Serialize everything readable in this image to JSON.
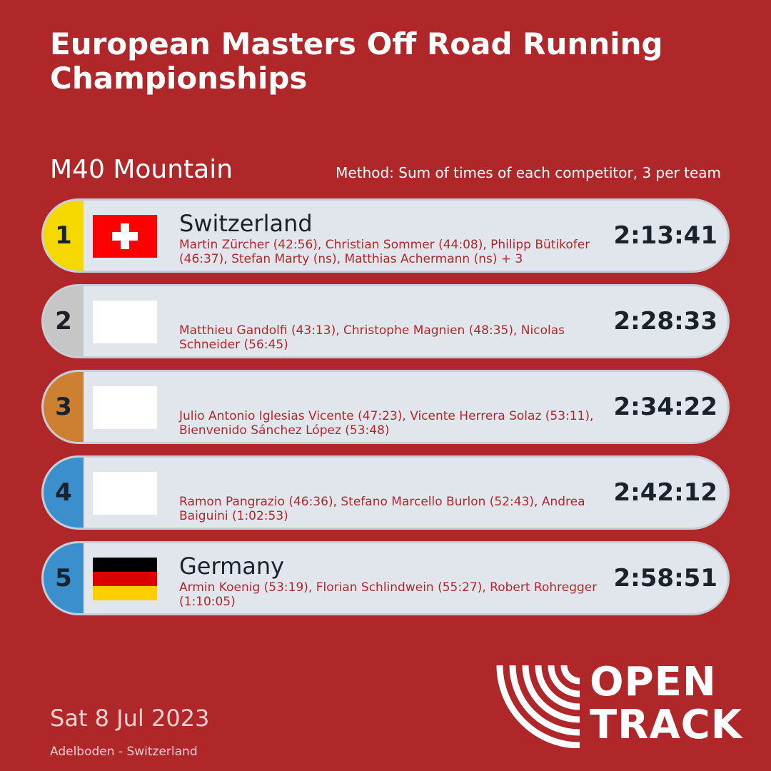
{
  "title": "European Masters Off Road Running Championships",
  "category": "M40 Mountain",
  "method": "Method: Sum of times of each competitor, 3 per team",
  "results": [
    {
      "rank": "1",
      "country": "Switzerland",
      "flag": "switzerland-flag",
      "athletes": "Martin Zürcher (42:56), Christian Sommer (44:08), Philipp Bütikofer (46:37), Stefan Marty (ns), Matthias Achermann (ns) + 3",
      "time": "2:13:41",
      "medal_color": "#f5d800"
    },
    {
      "rank": "2",
      "country": "",
      "flag": "blank-flag",
      "athletes": "Matthieu Gandolfi (43:13), Christophe Magnien (48:35), Nicolas Schneider (56:45)",
      "time": "2:28:33",
      "medal_color": "#c6c6c6"
    },
    {
      "rank": "3",
      "country": "",
      "flag": "blank-flag",
      "athletes": "Julio Antonio Iglesias Vicente (47:23), Vicente Herrera Solaz (53:11), Bienvenido Sánchez López (53:48)",
      "time": "2:34:22",
      "medal_color": "#cd7f32"
    },
    {
      "rank": "4",
      "country": "",
      "flag": "blank-flag",
      "athletes": "Ramon Pangrazio (46:36), Stefano Marcello Burlon (52:43), Andrea Baiguini (1:02:53)",
      "time": "2:42:12",
      "medal_color": "#3b8fcc"
    },
    {
      "rank": "5",
      "country": "Germany",
      "flag": "germany-flag",
      "athletes": "Armin Koenig (53:19), Florian Schlindwein (55:27), Robert Rohregger (1:10:05)",
      "time": "2:58:51",
      "medal_color": "#3b8fcc"
    }
  ],
  "date": "Sat 8 Jul 2023",
  "location": "Adelboden - Switzerland",
  "logo": {
    "line1": "OPEN",
    "line2": "TRACK"
  },
  "colors": {
    "background": "#b0272a",
    "row_background": "#e1e6ed",
    "athlete_text": "#b0272a",
    "germany_black": "#000000",
    "germany_red": "#dd0000",
    "germany_gold": "#ffce00"
  }
}
